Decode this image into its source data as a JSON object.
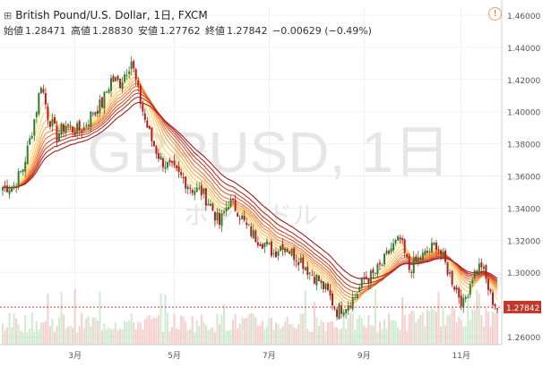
{
  "header": {
    "symbol_line": "British Pound/U.S. Dollar, 1日, FXCM",
    "grid_icon": "grid-icon",
    "alert_icon": "alert-icon",
    "open_label": "始値",
    "open_value": "1.28471",
    "high_label": "高値",
    "high_value": "1.28830",
    "low_label": "安値",
    "low_value": "1.27762",
    "close_label": "終値",
    "close_value": "1.27842",
    "change": "−0.00629 (−0.49%)"
  },
  "watermark": {
    "main": "GBPUSD, 1日",
    "sub": "ポンド/ドル"
  },
  "colors": {
    "up_candle": "#2e7d32",
    "down_candle": "#b71c1c",
    "ribbon_outer": "#a51c1c",
    "ribbon_inner": "#ffe082",
    "current_price_bg": "#c0392b"
  },
  "chart_data": {
    "type": "candlestick",
    "y_ticks": [
      "1.46000",
      "1.44000",
      "1.42000",
      "1.40000",
      "1.38000",
      "1.36000",
      "1.34000",
      "1.32000",
      "1.30000",
      "1.28000",
      "1.26000"
    ],
    "y_range": [
      1.255,
      1.465
    ],
    "x_ticks": [
      {
        "label": "3月",
        "index": 32
      },
      {
        "label": "5月",
        "index": 76
      },
      {
        "label": "7月",
        "index": 118
      },
      {
        "label": "9月",
        "index": 160
      },
      {
        "label": "11月",
        "index": 203
      }
    ],
    "current_price": "1.27842",
    "anchor_path": [
      [
        0,
        1.353
      ],
      [
        5,
        1.354
      ],
      [
        9,
        1.365
      ],
      [
        12,
        1.382
      ],
      [
        15,
        1.402
      ],
      [
        17,
        1.418
      ],
      [
        20,
        1.398
      ],
      [
        24,
        1.385
      ],
      [
        28,
        1.392
      ],
      [
        32,
        1.388
      ],
      [
        36,
        1.39
      ],
      [
        40,
        1.4
      ],
      [
        44,
        1.405
      ],
      [
        48,
        1.42
      ],
      [
        52,
        1.418
      ],
      [
        57,
        1.432
      ],
      [
        60,
        1.412
      ],
      [
        63,
        1.395
      ],
      [
        66,
        1.382
      ],
      [
        70,
        1.37
      ],
      [
        75,
        1.364
      ],
      [
        80,
        1.358
      ],
      [
        84,
        1.352
      ],
      [
        88,
        1.35
      ],
      [
        92,
        1.342
      ],
      [
        96,
        1.33
      ],
      [
        100,
        1.344
      ],
      [
        104,
        1.339
      ],
      [
        108,
        1.328
      ],
      [
        112,
        1.322
      ],
      [
        116,
        1.318
      ],
      [
        120,
        1.312
      ],
      [
        124,
        1.318
      ],
      [
        128,
        1.312
      ],
      [
        132,
        1.308
      ],
      [
        136,
        1.3
      ],
      [
        140,
        1.295
      ],
      [
        144,
        1.287
      ],
      [
        148,
        1.276
      ],
      [
        152,
        1.28
      ],
      [
        156,
        1.285
      ],
      [
        160,
        1.296
      ],
      [
        164,
        1.298
      ],
      [
        168,
        1.305
      ],
      [
        172,
        1.315
      ],
      [
        176,
        1.32
      ],
      [
        180,
        1.302
      ],
      [
        184,
        1.308
      ],
      [
        188,
        1.312
      ],
      [
        192,
        1.318
      ],
      [
        196,
        1.305
      ],
      [
        200,
        1.292
      ],
      [
        204,
        1.28
      ],
      [
        208,
        1.298
      ],
      [
        212,
        1.305
      ],
      [
        216,
        1.285
      ],
      [
        219,
        1.278
      ]
    ]
  }
}
